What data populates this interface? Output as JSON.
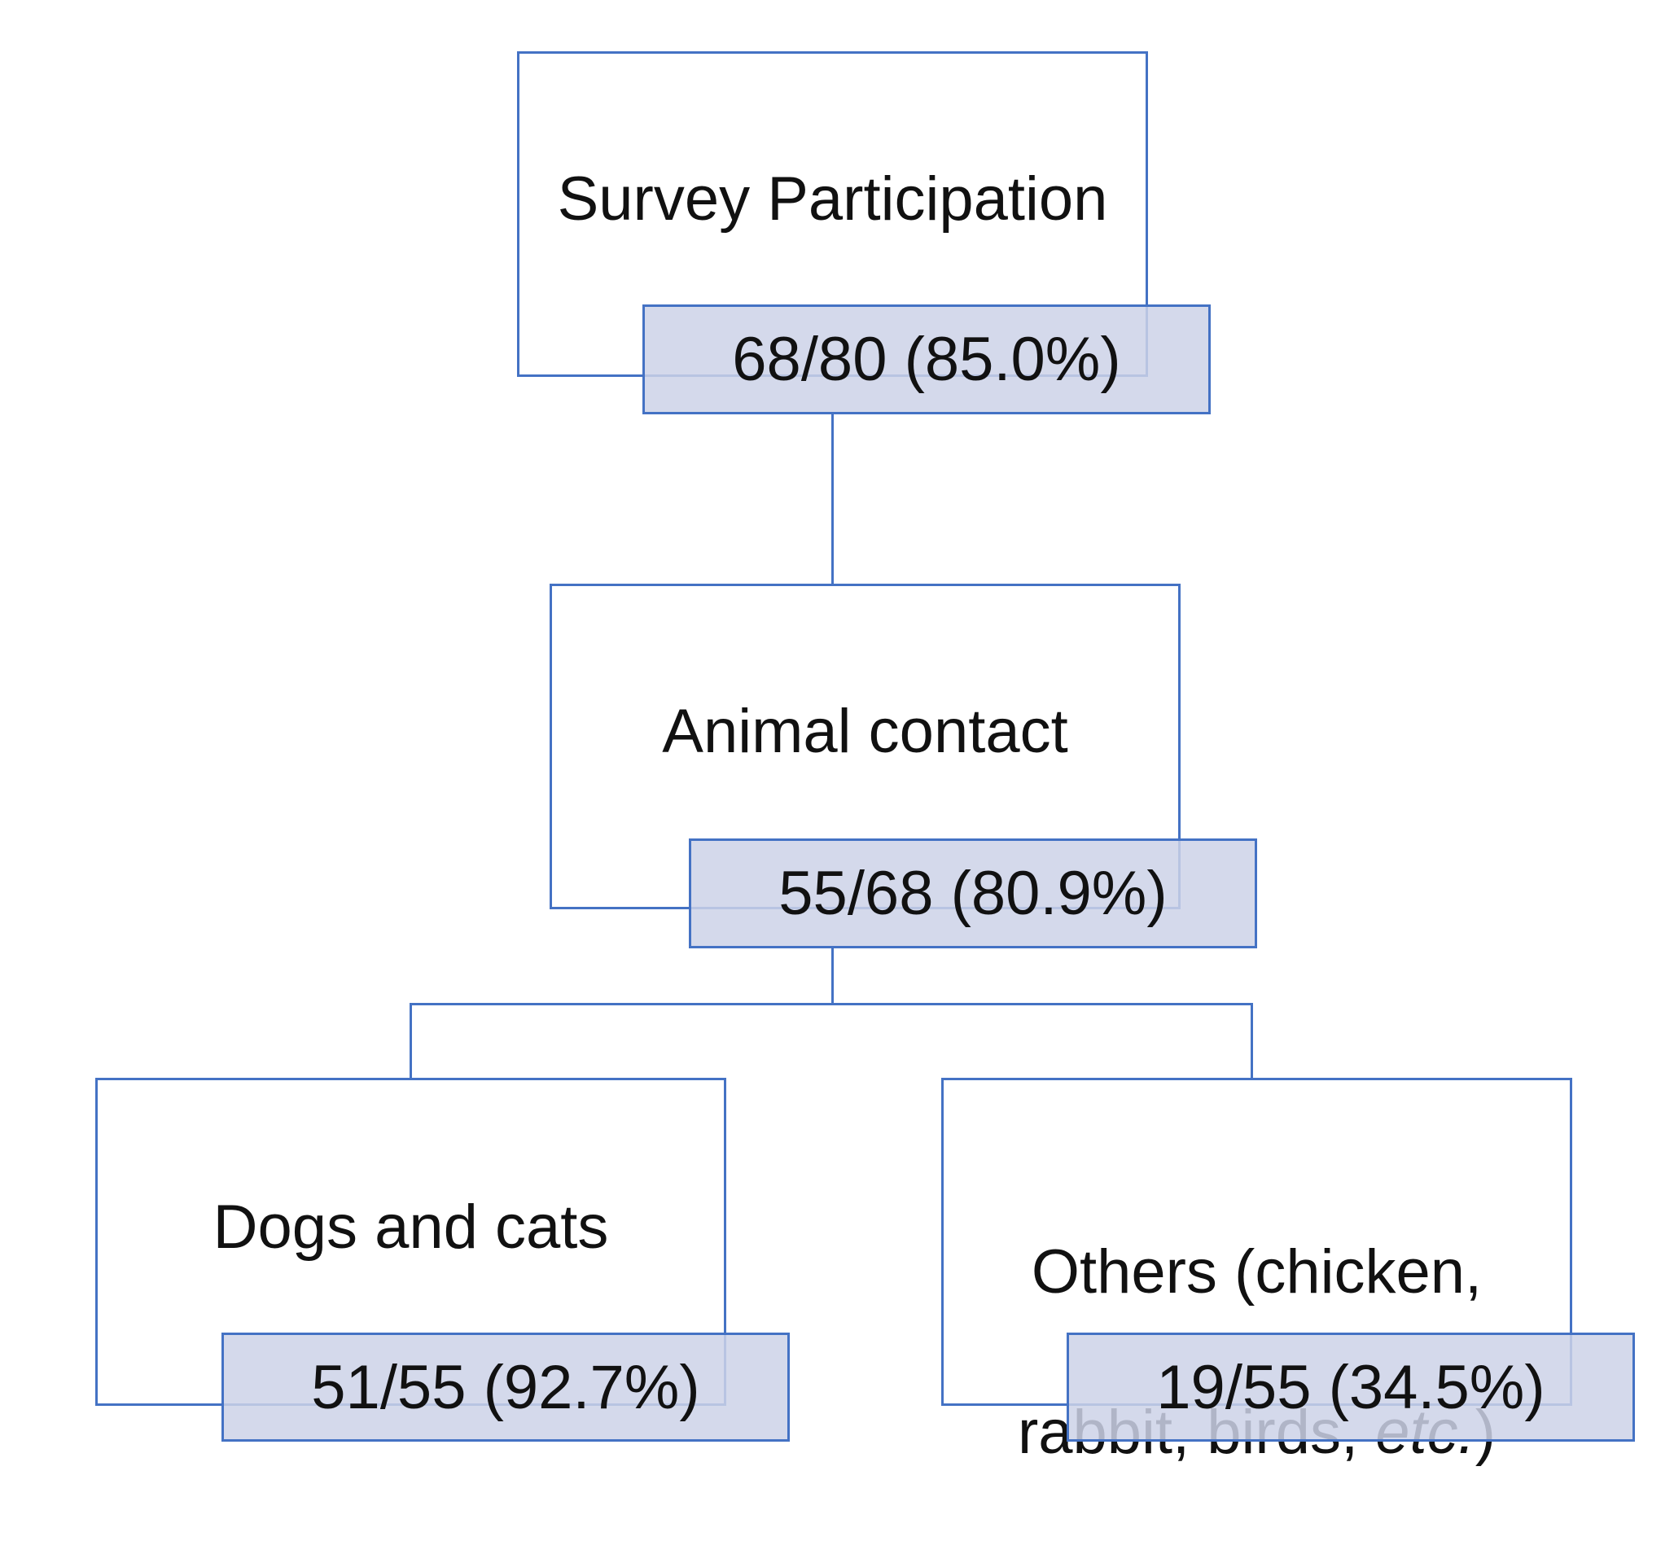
{
  "colors": {
    "border": "#4472c4",
    "count_fill": "#ccd2e8",
    "text": "#111111"
  },
  "nodes": {
    "survey": {
      "label": "Survey Participation",
      "count": "68/80 (85.0%)"
    },
    "animal_contact": {
      "label": "Animal contact",
      "count": "55/68 (80.9%)"
    },
    "dogs_cats": {
      "label": "Dogs and cats",
      "count": "51/55 (92.7%)"
    },
    "others": {
      "label_line1": "Others (chicken,",
      "label_line2_pre": "rabbit, birds, ",
      "label_line2_italic": "etc.",
      "label_line2_post": ")",
      "count": "19/55 (34.5%)"
    }
  }
}
